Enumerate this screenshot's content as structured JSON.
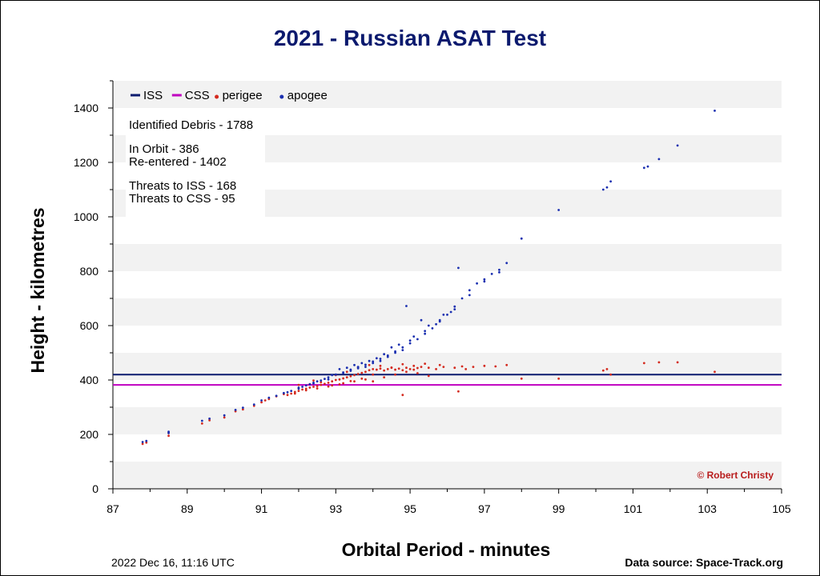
{
  "chart_data": {
    "type": "scatter",
    "title": "2021 - Russian ASAT Test",
    "xlabel": "Orbital Period - minutes",
    "ylabel": "Height - kilometres",
    "xlim": [
      87,
      105
    ],
    "ylim": [
      0,
      1500
    ],
    "x_ticks": [
      "87",
      "89",
      "91",
      "93",
      "95",
      "97",
      "99",
      "101",
      "103",
      "105"
    ],
    "y_ticks": [
      "0",
      "200",
      "400",
      "600",
      "800",
      "1000",
      "1200",
      "1400"
    ],
    "grid": "alternating horizontal bands every 100 km",
    "legend": {
      "position": "top-left",
      "entries": [
        {
          "label": "ISS",
          "marker": "line",
          "color": "#0b1a6e"
        },
        {
          "label": "CSS",
          "marker": "line",
          "color": "#c000c0"
        },
        {
          "label": "perigee",
          "marker": "dot",
          "color": "#d42a1e"
        },
        {
          "label": "apogee",
          "marker": "dot",
          "color": "#1a2fb0"
        }
      ]
    },
    "reference_lines": [
      {
        "name": "ISS",
        "y": 420,
        "color": "#0b1a6e"
      },
      {
        "name": "CSS",
        "y": 382,
        "color": "#c000c0"
      }
    ],
    "series": [
      {
        "name": "perigee",
        "color": "#d42a1e",
        "points": [
          [
            87.8,
            165
          ],
          [
            87.9,
            170
          ],
          [
            88.5,
            195
          ],
          [
            88.5,
            205
          ],
          [
            89.4,
            240
          ],
          [
            89.6,
            252
          ],
          [
            90.0,
            262
          ],
          [
            90.3,
            285
          ],
          [
            90.5,
            292
          ],
          [
            90.8,
            305
          ],
          [
            91.0,
            318
          ],
          [
            91.1,
            325
          ],
          [
            91.2,
            330
          ],
          [
            91.4,
            340
          ],
          [
            91.6,
            348
          ],
          [
            91.8,
            350
          ],
          [
            91.9,
            356
          ],
          [
            92.0,
            360
          ],
          [
            92.1,
            365
          ],
          [
            92.2,
            368
          ],
          [
            92.3,
            372
          ],
          [
            92.4,
            375
          ],
          [
            92.5,
            378
          ],
          [
            92.6,
            382
          ],
          [
            92.7,
            386
          ],
          [
            92.8,
            390
          ],
          [
            92.9,
            395
          ],
          [
            93.0,
            400
          ],
          [
            93.1,
            402
          ],
          [
            93.2,
            406
          ],
          [
            93.3,
            410
          ],
          [
            93.4,
            414
          ],
          [
            93.5,
            418
          ],
          [
            93.6,
            422
          ],
          [
            93.7,
            426
          ],
          [
            93.8,
            430
          ],
          [
            93.9,
            436
          ],
          [
            94.0,
            440
          ],
          [
            94.1,
            438
          ],
          [
            94.2,
            442
          ],
          [
            94.3,
            435
          ],
          [
            94.4,
            440
          ],
          [
            94.5,
            445
          ],
          [
            94.6,
            438
          ],
          [
            94.7,
            442
          ],
          [
            94.8,
            436
          ],
          [
            94.9,
            445
          ],
          [
            95.0,
            440
          ],
          [
            95.1,
            438
          ],
          [
            95.2,
            444
          ],
          [
            95.3,
            448
          ],
          [
            95.5,
            445
          ],
          [
            95.7,
            440
          ],
          [
            95.9,
            448
          ],
          [
            96.2,
            445
          ],
          [
            96.4,
            450
          ],
          [
            96.7,
            448
          ],
          [
            97.0,
            452
          ],
          [
            97.3,
            450
          ],
          [
            97.6,
            455
          ],
          [
            98.0,
            405
          ],
          [
            99.0,
            405
          ],
          [
            100.2,
            435
          ],
          [
            100.3,
            440
          ],
          [
            100.4,
            420
          ],
          [
            101.3,
            462
          ],
          [
            101.7,
            465
          ],
          [
            102.2,
            465
          ],
          [
            103.2,
            430
          ],
          [
            92.3,
            385
          ],
          [
            92.6,
            392
          ],
          [
            92.9,
            380
          ],
          [
            93.2,
            388
          ],
          [
            93.5,
            395
          ],
          [
            93.8,
            402
          ],
          [
            94.0,
            395
          ],
          [
            94.3,
            410
          ],
          [
            94.6,
            420
          ],
          [
            94.9,
            430
          ],
          [
            95.2,
            425
          ],
          [
            95.5,
            415
          ],
          [
            94.8,
            345
          ],
          [
            96.3,
            358
          ],
          [
            92.0,
            382
          ],
          [
            92.4,
            398
          ],
          [
            93.0,
            418
          ],
          [
            93.3,
            430
          ],
          [
            93.6,
            446
          ],
          [
            93.9,
            455
          ],
          [
            94.2,
            452
          ],
          [
            94.5,
            446
          ],
          [
            94.8,
            458
          ],
          [
            95.1,
            452
          ],
          [
            95.4,
            460
          ],
          [
            95.8,
            455
          ],
          [
            96.5,
            440
          ],
          [
            94.0,
            420
          ],
          [
            93.7,
            405
          ],
          [
            93.4,
            396
          ],
          [
            93.1,
            384
          ],
          [
            92.8,
            376
          ],
          [
            92.5,
            369
          ],
          [
            92.2,
            362
          ],
          [
            91.9,
            350
          ],
          [
            91.7,
            345
          ]
        ]
      },
      {
        "name": "apogee",
        "color": "#1a2fb0",
        "points": [
          [
            87.8,
            172
          ],
          [
            87.9,
            176
          ],
          [
            88.5,
            205
          ],
          [
            88.5,
            210
          ],
          [
            89.4,
            250
          ],
          [
            89.6,
            258
          ],
          [
            90.0,
            270
          ],
          [
            90.3,
            290
          ],
          [
            90.5,
            298
          ],
          [
            90.8,
            310
          ],
          [
            91.0,
            325
          ],
          [
            91.2,
            335
          ],
          [
            91.4,
            342
          ],
          [
            91.6,
            352
          ],
          [
            91.8,
            360
          ],
          [
            92.0,
            372
          ],
          [
            92.2,
            380
          ],
          [
            92.4,
            390
          ],
          [
            92.6,
            398
          ],
          [
            92.8,
            410
          ],
          [
            93.0,
            420
          ],
          [
            93.2,
            428
          ],
          [
            93.4,
            438
          ],
          [
            93.6,
            448
          ],
          [
            93.8,
            456
          ],
          [
            94.0,
            468
          ],
          [
            94.2,
            478
          ],
          [
            94.4,
            490
          ],
          [
            94.6,
            505
          ],
          [
            94.8,
            520
          ],
          [
            95.0,
            535
          ],
          [
            95.2,
            550
          ],
          [
            95.4,
            570
          ],
          [
            95.6,
            590
          ],
          [
            95.8,
            615
          ],
          [
            96.0,
            640
          ],
          [
            96.2,
            670
          ],
          [
            96.4,
            700
          ],
          [
            96.6,
            730
          ],
          [
            96.8,
            755
          ],
          [
            97.0,
            770
          ],
          [
            97.2,
            790
          ],
          [
            97.4,
            805
          ],
          [
            97.6,
            830
          ],
          [
            96.3,
            812
          ],
          [
            98.0,
            920
          ],
          [
            99.0,
            1025
          ],
          [
            100.2,
            1100
          ],
          [
            100.3,
            1108
          ],
          [
            100.4,
            1130
          ],
          [
            101.3,
            1180
          ],
          [
            101.4,
            1185
          ],
          [
            101.7,
            1212
          ],
          [
            102.2,
            1262
          ],
          [
            103.2,
            1390
          ],
          [
            93.1,
            440
          ],
          [
            93.5,
            455
          ],
          [
            93.9,
            470
          ],
          [
            94.3,
            495
          ],
          [
            94.7,
            530
          ],
          [
            95.1,
            560
          ],
          [
            95.5,
            600
          ],
          [
            95.9,
            640
          ],
          [
            94.9,
            672
          ],
          [
            95.3,
            620
          ],
          [
            94.5,
            520
          ],
          [
            94.1,
            480
          ],
          [
            93.7,
            462
          ],
          [
            93.3,
            445
          ],
          [
            92.9,
            418
          ],
          [
            92.5,
            395
          ],
          [
            92.1,
            375
          ],
          [
            91.7,
            355
          ],
          [
            92.3,
            384
          ],
          [
            92.7,
            404
          ],
          [
            93.4,
            434
          ],
          [
            93.8,
            448
          ],
          [
            94.2,
            470
          ],
          [
            94.6,
            500
          ],
          [
            95.0,
            545
          ],
          [
            95.4,
            580
          ],
          [
            95.8,
            620
          ],
          [
            96.2,
            660
          ],
          [
            96.6,
            712
          ],
          [
            97.0,
            762
          ],
          [
            97.4,
            796
          ],
          [
            96.1,
            650
          ],
          [
            95.7,
            605
          ],
          [
            94.8,
            510
          ],
          [
            94.4,
            485
          ],
          [
            94.0,
            462
          ],
          [
            93.6,
            443
          ],
          [
            93.2,
            425
          ],
          [
            92.8,
            402
          ],
          [
            92.4,
            387
          ],
          [
            92.0,
            368
          ]
        ]
      }
    ]
  },
  "info_box": {
    "identified": "Identified Debris - 1788",
    "in_orbit": "In Orbit - 386",
    "reentered": "Re-entered - 1402",
    "threats_iss": "Threats to ISS -  168",
    "threats_css": "Threats to CSS - 95"
  },
  "copyright": "© Robert Christy",
  "footer": {
    "timestamp": "2022 Dec 16, 11:16 UTC",
    "source": "Data source: Space-Track.org"
  },
  "colors": {
    "title": "#0b1a6e",
    "band": "#f2f2f2",
    "copyright": "#b81c1c"
  }
}
